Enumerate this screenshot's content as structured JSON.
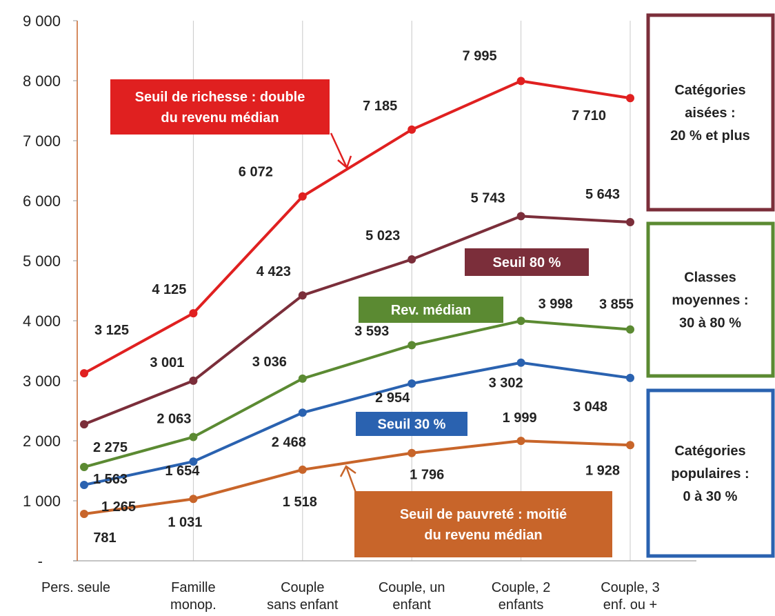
{
  "chart_data": {
    "type": "line",
    "categories": [
      [
        "Pers. seule"
      ],
      [
        "Famille",
        "monop."
      ],
      [
        "Couple",
        "sans enfant"
      ],
      [
        "Couple, un",
        "enfant"
      ],
      [
        "Couple, 2",
        "enfants"
      ],
      [
        "Couple, 3",
        "enf. ou +"
      ]
    ],
    "y_tick_labels": [
      "-",
      "1 000",
      "2 000",
      "3 000",
      "4 000",
      "5 000",
      "6 000",
      "7 000",
      "8 000",
      "9 000"
    ],
    "ylim": [
      0,
      9000
    ],
    "grid": "vertical",
    "series": [
      {
        "key": "richesse",
        "color": "#e02020",
        "values": [
          3125,
          4125,
          6072,
          7185,
          7995,
          7710
        ],
        "labels": [
          "3 125",
          "4 125",
          "6 072",
          "7 185",
          "7 995",
          "7 710"
        ]
      },
      {
        "key": "seuil80",
        "color": "#7b2e3a",
        "values": [
          2275,
          3001,
          4423,
          5023,
          5743,
          5643
        ],
        "labels": [
          "2 275",
          "3 001",
          "4 423",
          "5 023",
          "5 743",
          "5 643"
        ]
      },
      {
        "key": "median",
        "color": "#5b8a32",
        "values": [
          1563,
          2063,
          3036,
          3593,
          3998,
          3855
        ],
        "labels": [
          "1 563",
          "2 063",
          "3 036",
          "3 593",
          "3 998",
          "3 855"
        ]
      },
      {
        "key": "seuil30",
        "color": "#2a62b0",
        "values": [
          1265,
          1654,
          2468,
          2954,
          3302,
          3048
        ],
        "labels": [
          "1 265",
          "1 654",
          "2 468",
          "2 954",
          "3 302",
          "3 048"
        ]
      },
      {
        "key": "pauvrete",
        "color": "#c8652a",
        "values": [
          781,
          1031,
          1518,
          1796,
          1999,
          1928
        ],
        "labels": [
          "781",
          "1 031",
          "1 518",
          "1 796",
          "1 999",
          "1 928"
        ]
      }
    ],
    "annotations": {
      "richesse": [
        "Seuil de richesse : double",
        "du revenu médian"
      ],
      "seuil80": [
        "Seuil  80 %"
      ],
      "median": [
        "Rev. médian"
      ],
      "seuil30": [
        "Seuil 30 %"
      ],
      "pauvrete": [
        "Seuil de pauvreté : moitié",
        "du revenu médian"
      ]
    },
    "side_boxes": [
      {
        "key": "aisees",
        "color": "#7b2e3a",
        "lines": [
          "Catégories",
          "aisées :",
          "20 % et plus"
        ]
      },
      {
        "key": "moyennes",
        "color": "#5b8a32",
        "lines": [
          "Classes",
          "moyennes :",
          "30 à 80 %"
        ]
      },
      {
        "key": "populaires",
        "color": "#2a62b0",
        "lines": [
          "Catégories",
          "populaires :",
          "0 à 30 %"
        ]
      }
    ]
  }
}
